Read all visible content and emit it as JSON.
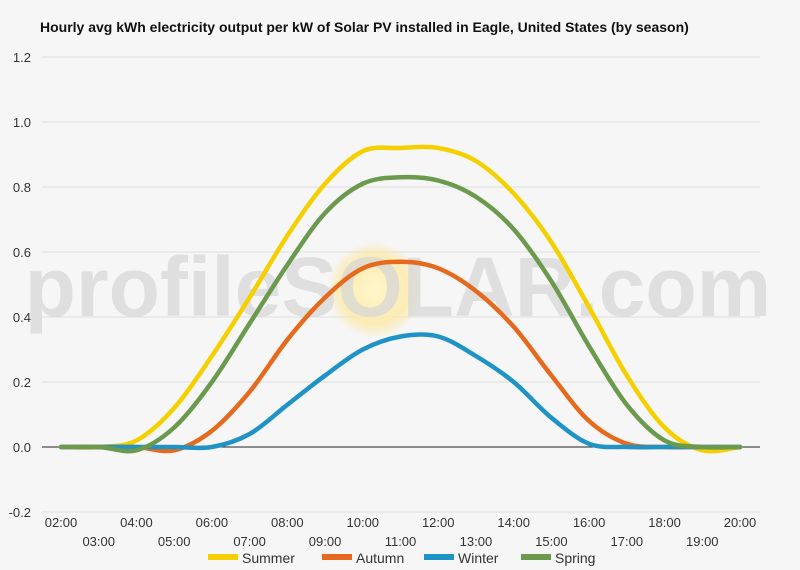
{
  "chart_data": {
    "type": "line",
    "title": "Hourly avg kWh electricity output per kW of Solar PV installed in Eagle, United States (by season)",
    "xlabel": "",
    "ylabel": "",
    "ylim": [
      -0.2,
      1.2
    ],
    "y_ticks": [
      "-0.2",
      "0.0",
      "0.2",
      "0.4",
      "0.6",
      "0.8",
      "1.0",
      "1.2"
    ],
    "y_tick_values": [
      -0.2,
      0,
      0.2,
      0.4,
      0.6,
      0.8,
      1.0,
      1.2
    ],
    "grid": true,
    "legend_position": "bottom",
    "watermark": "profileSOLAR.com",
    "x": [
      "02:00",
      "03:00",
      "04:00",
      "05:00",
      "06:00",
      "07:00",
      "08:00",
      "09:00",
      "10:00",
      "11:00",
      "12:00",
      "13:00",
      "14:00",
      "15:00",
      "16:00",
      "17:00",
      "18:00",
      "19:00",
      "20:00"
    ],
    "series": [
      {
        "name": "Summer",
        "color": "#f5d000",
        "values": [
          0.0,
          0.0,
          0.02,
          0.12,
          0.28,
          0.46,
          0.65,
          0.81,
          0.91,
          0.92,
          0.92,
          0.88,
          0.78,
          0.63,
          0.43,
          0.22,
          0.06,
          -0.01,
          0.0
        ]
      },
      {
        "name": "Autumn",
        "color": "#e66a1e",
        "values": [
          0.0,
          0.0,
          0.0,
          -0.01,
          0.05,
          0.17,
          0.33,
          0.46,
          0.55,
          0.57,
          0.55,
          0.48,
          0.37,
          0.22,
          0.08,
          0.01,
          0.0,
          0.0,
          0.0
        ]
      },
      {
        "name": "Winter",
        "color": "#1f93c6",
        "values": [
          0.0,
          0.0,
          0.0,
          0.0,
          0.0,
          0.04,
          0.13,
          0.22,
          0.3,
          0.34,
          0.34,
          0.28,
          0.2,
          0.09,
          0.01,
          0.0,
          0.0,
          0.0,
          0.0
        ]
      },
      {
        "name": "Spring",
        "color": "#6b9a4e",
        "values": [
          0.0,
          0.0,
          -0.01,
          0.06,
          0.2,
          0.38,
          0.56,
          0.72,
          0.81,
          0.83,
          0.82,
          0.77,
          0.67,
          0.51,
          0.31,
          0.13,
          0.02,
          0.0,
          0.0
        ]
      }
    ]
  }
}
